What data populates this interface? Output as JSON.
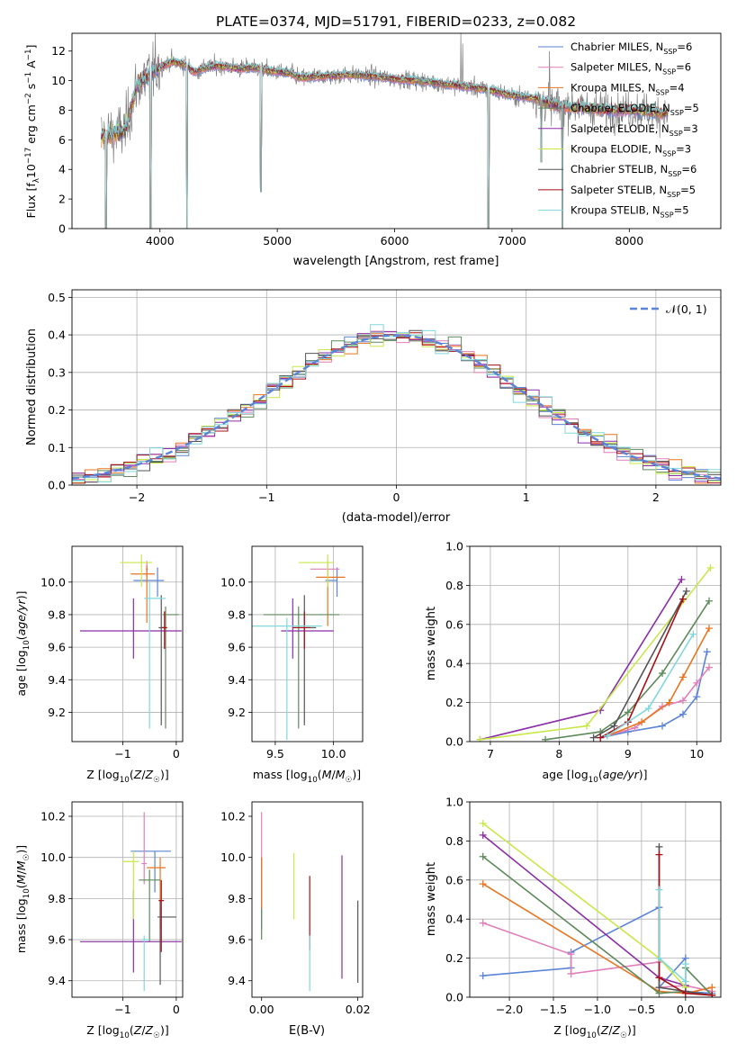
{
  "colors": {
    "series": [
      "#5b84d6",
      "#e17fb8",
      "#e8751f",
      "#5e8a5b",
      "#8c2ea8",
      "#c8e84a",
      "#555555",
      "#a80f16",
      "#80d8dc"
    ],
    "spectrum": "#808080",
    "grid": "#b0b0b0",
    "normal_curve": "#5b84d6"
  },
  "chart_data": [
    {
      "id": "spectrum",
      "type": "line",
      "title": "PLATE=0374, MJD=51791, FIBERID=0233, z=0.082",
      "xlabel": "wavelength [Angstrom, rest frame]",
      "ylabel": "Flux [fλ10⁻¹⁷ erg cm⁻² s⁻¹ A⁻¹]",
      "xlim": [
        3250,
        8780
      ],
      "ylim": [
        0,
        13.2
      ],
      "xticks": [
        4000,
        5000,
        6000,
        7000,
        8000
      ],
      "yticks": [
        0,
        2,
        4,
        6,
        8,
        10,
        12
      ],
      "legend_position": "top-right",
      "legend": [
        "Chabrier MILES, N_SSP=6",
        "Salpeter MILES, N_SSP=6",
        "Kroupa MILES, N_SSP=4",
        "Chabrier ELODIE, N_SSP=5",
        "Salpeter ELODIE, N_SSP=3",
        "Kroupa ELODIE, N_SSP=3",
        "Chabrier STELIB, N_SSP=6",
        "Salpeter STELIB, N_SSP=5",
        "Kroupa STELIB, N_SSP=5"
      ],
      "continuum": [
        [
          3500,
          6.2
        ],
        [
          3700,
          6.6
        ],
        [
          3800,
          9.6
        ],
        [
          3900,
          10.4
        ],
        [
          4000,
          10.9
        ],
        [
          4100,
          11.3
        ],
        [
          4200,
          11.1
        ],
        [
          4300,
          10.6
        ],
        [
          4400,
          10.9
        ],
        [
          4500,
          11.0
        ],
        [
          4600,
          10.9
        ],
        [
          4700,
          10.8
        ],
        [
          4800,
          10.9
        ],
        [
          4900,
          10.7
        ],
        [
          5000,
          10.6
        ],
        [
          5100,
          10.5
        ],
        [
          5200,
          10.2
        ],
        [
          5400,
          10.3
        ],
        [
          5600,
          10.4
        ],
        [
          5800,
          10.3
        ],
        [
          6000,
          10.1
        ],
        [
          6200,
          10.0
        ],
        [
          6400,
          9.8
        ],
        [
          6600,
          9.6
        ],
        [
          6800,
          9.4
        ],
        [
          7000,
          9.0
        ],
        [
          7200,
          8.8
        ],
        [
          7400,
          8.3
        ],
        [
          7600,
          8.2
        ],
        [
          7800,
          8.0
        ],
        [
          8000,
          8.0
        ],
        [
          8200,
          7.9
        ],
        [
          8300,
          7.8
        ]
      ],
      "absorption_dips": [
        [
          3540,
          0
        ],
        [
          3920,
          0
        ],
        [
          4230,
          0
        ],
        [
          4860,
          2.5
        ],
        [
          6800,
          0
        ],
        [
          7250,
          4.5
        ],
        [
          7430,
          0
        ]
      ],
      "emission_spikes": [
        [
          6565,
          13.2
        ],
        [
          6580,
          12.5
        ],
        [
          7320,
          12.0
        ]
      ]
    },
    {
      "id": "residuals",
      "type": "histogram",
      "xlabel": "(data-model)/error",
      "ylabel": "Normed distribution",
      "xlim": [
        -2.5,
        2.5
      ],
      "ylim": [
        0,
        0.52
      ],
      "xticks": [
        -2,
        -1,
        0,
        1,
        2
      ],
      "yticks": [
        0.0,
        0.1,
        0.2,
        0.3,
        0.4,
        0.5
      ],
      "bin_width": 0.1,
      "curve_label": "𝒩(0, 1)",
      "legend_position": "top-right",
      "grid": true
    },
    {
      "id": "z-vs-age",
      "type": "scatter",
      "xlabel": "Z [log₁₀(Z/Z☉)]",
      "ylabel": "age  [log₁₀(age/yr)]",
      "xlim": [
        -1.95,
        0.12
      ],
      "ylim": [
        9.02,
        10.22
      ],
      "xticks": [
        -1,
        0
      ],
      "yticks": [
        9.2,
        9.4,
        9.6,
        9.8,
        10.0
      ],
      "grid": true,
      "points": [
        {
          "x": -0.35,
          "xerr": [
            0.45,
            0.12
          ],
          "y": 10.01,
          "yerr": [
            0.1,
            0.08
          ]
        },
        {
          "x": -0.55,
          "xerr": [
            0.02,
            0.02
          ],
          "y": 10.08,
          "yerr": [
            0.05,
            0.05
          ]
        },
        {
          "x": -0.55,
          "xerr": [
            0.3,
            0.15
          ],
          "y": 10.05,
          "yerr": [
            0.3,
            0.05
          ]
        },
        {
          "x": -0.2,
          "xerr": [
            0.05,
            0.25
          ],
          "y": 9.8,
          "yerr": [
            0.7,
            0.05
          ]
        },
        {
          "x": -0.8,
          "xerr": [
            1.0,
            0.9
          ],
          "y": 9.7,
          "yerr": [
            0.17,
            0.2
          ]
        },
        {
          "x": -0.65,
          "xerr": [
            0.4,
            0.2
          ],
          "y": 10.12,
          "yerr": [
            0.15,
            0.05
          ]
        },
        {
          "x": -0.28,
          "xerr": [
            0.05,
            0.05
          ],
          "y": 9.72,
          "yerr": [
            0.6,
            0.2
          ]
        },
        {
          "x": -0.22,
          "xerr": [
            0.05,
            0.05
          ],
          "y": 9.72,
          "yerr": [
            0.13,
            0.1
          ]
        },
        {
          "x": -0.5,
          "xerr": [
            0.1,
            0.3
          ],
          "y": 9.9,
          "yerr": [
            0.8,
            0.1
          ]
        }
      ]
    },
    {
      "id": "mass-vs-age",
      "type": "scatter",
      "xlabel": "mass [log₁₀(M/M☉)]",
      "ylabel": "",
      "xlim": [
        9.3,
        10.25
      ],
      "ylim": [
        9.02,
        10.22
      ],
      "xticks": [
        9.5,
        10.0
      ],
      "yticks": [
        9.2,
        9.4,
        9.6,
        9.8,
        10.0
      ],
      "grid": true,
      "points": [
        {
          "x": 10.03,
          "xerr": [
            0.1,
            0.0
          ],
          "y": 10.01,
          "yerr": [
            0.1,
            0.08
          ]
        },
        {
          "x": 9.95,
          "xerr": [
            0.15,
            0.1
          ],
          "y": 10.08,
          "yerr": [
            0.05,
            0.05
          ]
        },
        {
          "x": 9.95,
          "xerr": [
            0.1,
            0.15
          ],
          "y": 10.03,
          "yerr": [
            0.3,
            0.05
          ]
        },
        {
          "x": 9.7,
          "xerr": [
            0.3,
            0.35
          ],
          "y": 9.8,
          "yerr": [
            0.7,
            0.05
          ]
        },
        {
          "x": 9.65,
          "xerr": [
            0.1,
            0.35
          ],
          "y": 9.7,
          "yerr": [
            0.17,
            0.2
          ]
        },
        {
          "x": 9.95,
          "xerr": [
            0.25,
            0.05
          ],
          "y": 10.12,
          "yerr": [
            0.15,
            0.05
          ]
        },
        {
          "x": 9.75,
          "xerr": [
            0.1,
            0.1
          ],
          "y": 9.72,
          "yerr": [
            0.6,
            0.2
          ]
        },
        {
          "x": 9.75,
          "xerr": [
            0.1,
            0.05
          ],
          "y": 9.72,
          "yerr": [
            0.13,
            0.1
          ]
        },
        {
          "x": 9.6,
          "xerr": [
            0.3,
            0.3
          ],
          "y": 9.73,
          "yerr": [
            0.7,
            0.05
          ]
        }
      ]
    },
    {
      "id": "age-vs-weight",
      "type": "line",
      "xlabel": "age  [log₁₀(age/yr)]",
      "ylabel": "mass weight",
      "xlim": [
        6.7,
        10.35
      ],
      "ylim": [
        0,
        1.0
      ],
      "xticks": [
        7,
        8,
        9,
        10
      ],
      "yticks": [
        0.0,
        0.2,
        0.4,
        0.6,
        0.8,
        1.0
      ],
      "grid": true,
      "series": [
        {
          "points": [
            [
              8.6,
              0.02
            ],
            [
              9.0,
              0.05
            ],
            [
              9.5,
              0.08
            ],
            [
              9.8,
              0.14
            ],
            [
              10.0,
              0.23
            ],
            [
              10.15,
              0.46
            ]
          ]
        },
        {
          "points": [
            [
              8.7,
              0.03
            ],
            [
              9.1,
              0.07
            ],
            [
              9.5,
              0.18
            ],
            [
              9.8,
              0.21
            ],
            [
              10.0,
              0.3
            ],
            [
              10.18,
              0.38
            ]
          ]
        },
        {
          "points": [
            [
              8.7,
              0.03
            ],
            [
              9.2,
              0.1
            ],
            [
              9.6,
              0.2
            ],
            [
              9.8,
              0.33
            ],
            [
              10.18,
              0.58
            ]
          ]
        },
        {
          "points": [
            [
              7.8,
              0.01
            ],
            [
              8.6,
              0.05
            ],
            [
              9.0,
              0.15
            ],
            [
              9.5,
              0.35
            ],
            [
              10.18,
              0.72
            ]
          ]
        },
        {
          "points": [
            [
              6.85,
              0.01
            ],
            [
              8.6,
              0.16
            ],
            [
              9.78,
              0.83
            ]
          ]
        },
        {
          "points": [
            [
              6.85,
              0.01
            ],
            [
              8.4,
              0.08
            ],
            [
              10.2,
              0.89
            ]
          ]
        },
        {
          "points": [
            [
              8.5,
              0.02
            ],
            [
              8.8,
              0.08
            ],
            [
              9.85,
              0.77
            ]
          ]
        },
        {
          "points": [
            [
              8.6,
              0.02
            ],
            [
              9.0,
              0.1
            ],
            [
              9.8,
              0.73
            ]
          ]
        },
        {
          "points": [
            [
              8.7,
              0.03
            ],
            [
              9.3,
              0.17
            ],
            [
              9.95,
              0.55
            ]
          ]
        }
      ]
    },
    {
      "id": "z-vs-mass",
      "type": "scatter",
      "xlabel": "Z [log₁₀(Z/Z☉)]",
      "ylabel": "mass [log₁₀(M/M☉)]",
      "xlim": [
        -1.95,
        0.12
      ],
      "ylim": [
        9.32,
        10.27
      ],
      "xticks": [
        -1,
        0
      ],
      "yticks": [
        9.4,
        9.6,
        9.8,
        10.0,
        10.2
      ],
      "grid": true,
      "points": [
        {
          "x": -0.4,
          "xerr": [
            0.45,
            0.3
          ],
          "y": 10.03,
          "yerr": [
            0.2,
            0.0
          ]
        },
        {
          "x": -0.6,
          "xerr": [
            0.05,
            0.05
          ],
          "y": 9.97,
          "yerr": [
            0.1,
            0.25
          ]
        },
        {
          "x": -0.3,
          "xerr": [
            0.25,
            0.1
          ],
          "y": 9.95,
          "yerr": [
            0.3,
            0.05
          ]
        },
        {
          "x": -0.5,
          "xerr": [
            0.2,
            0.2
          ],
          "y": 9.89,
          "yerr": [
            0.3,
            0.05
          ]
        },
        {
          "x": -0.8,
          "xerr": [
            1.0,
            0.9
          ],
          "y": 9.59,
          "yerr": [
            0.15,
            0.25
          ]
        },
        {
          "x": -0.8,
          "xerr": [
            0.2,
            0.1
          ],
          "y": 9.98,
          "yerr": [
            0.28,
            0.05
          ]
        },
        {
          "x": -0.3,
          "xerr": [
            0.05,
            0.3
          ],
          "y": 9.71,
          "yerr": [
            0.33,
            0.08
          ]
        },
        {
          "x": -0.28,
          "xerr": [
            0.05,
            0.05
          ],
          "y": 9.79,
          "yerr": [
            0.25,
            0.1
          ]
        },
        {
          "x": -0.6,
          "xerr": [
            0.05,
            0.1
          ],
          "y": 9.6,
          "yerr": [
            0.25,
            0.02
          ]
        }
      ]
    },
    {
      "id": "ebv-vs-mass",
      "type": "scatter",
      "xlabel": "E(B-V)",
      "ylabel": "",
      "xlim": [
        -0.002,
        0.021
      ],
      "ylim": [
        9.32,
        10.27
      ],
      "xticks": [
        0.0,
        0.02
      ],
      "yticks": [
        9.4,
        9.6,
        9.8,
        10.0,
        10.2
      ],
      "grid": false,
      "points": [
        {
          "x": 0.0,
          "y": 9.9,
          "yerr": [
            0.25,
            0.1
          ]
        },
        {
          "x": 0.0,
          "y": 10.05,
          "yerr": [
            0.1,
            0.17
          ]
        },
        {
          "x": 0.0,
          "y": 9.95,
          "yerr": [
            0.2,
            0.05
          ]
        },
        {
          "x": 0.0,
          "y": 9.7,
          "yerr": [
            0.1,
            0.05
          ]
        },
        {
          "x": 0.0167,
          "y": 9.71,
          "yerr": [
            0.3,
            0.3
          ]
        },
        {
          "x": 0.0067,
          "y": 9.86,
          "yerr": [
            0.16,
            0.16
          ]
        },
        {
          "x": 0.02,
          "y": 9.59,
          "yerr": [
            0.2,
            0.2
          ]
        },
        {
          "x": 0.01,
          "y": 9.79,
          "yerr": [
            0.24,
            0.12
          ]
        },
        {
          "x": 0.01,
          "y": 9.53,
          "yerr": [
            0.18,
            0.09
          ]
        }
      ]
    },
    {
      "id": "z-vs-weight",
      "type": "line",
      "xlabel": "Z [log₁₀(Z/Z☉)]",
      "ylabel": "mass weight",
      "xlim": [
        -2.45,
        0.4
      ],
      "ylim": [
        0,
        1.0
      ],
      "xticks": [
        -2.0,
        -1.5,
        -1.0,
        -0.5,
        0.0
      ],
      "yticks": [
        0.0,
        0.2,
        0.4,
        0.6,
        0.8,
        1.0
      ],
      "grid": true,
      "series": [
        {
          "points": [
            [
              -2.3,
              0.11
            ],
            [
              -1.3,
              0.15
            ],
            [
              -1.3,
              0.23
            ],
            [
              -0.3,
              0.46
            ],
            [
              -0.3,
              0.05
            ],
            [
              0.0,
              0.2
            ],
            [
              0.0,
              0.03
            ],
            [
              0.3,
              0.02
            ]
          ]
        },
        {
          "points": [
            [
              -2.3,
              0.38
            ],
            [
              -1.3,
              0.22
            ],
            [
              -1.3,
              0.12
            ],
            [
              -0.3,
              0.18
            ],
            [
              -0.3,
              0.05
            ],
            [
              0.0,
              0.06
            ],
            [
              0.3,
              0.03
            ]
          ]
        },
        {
          "points": [
            [
              -2.3,
              0.58
            ],
            [
              -0.3,
              0.03
            ],
            [
              0.0,
              0.02
            ],
            [
              0.3,
              0.05
            ]
          ]
        },
        {
          "points": [
            [
              -2.3,
              0.72
            ],
            [
              -0.3,
              0.02
            ],
            [
              0.0,
              0.03
            ],
            [
              0.0,
              0.15
            ],
            [
              0.3,
              0.01
            ]
          ]
        },
        {
          "points": [
            [
              -2.3,
              0.83
            ],
            [
              -0.3,
              0.1
            ],
            [
              0.0,
              0.06
            ]
          ]
        },
        {
          "points": [
            [
              -2.3,
              0.89
            ],
            [
              -0.3,
              0.2
            ],
            [
              0.0,
              0.05
            ]
          ]
        },
        {
          "points": [
            [
              -0.3,
              0.77
            ],
            [
              -0.3,
              0.05
            ],
            [
              0.0,
              0.03
            ],
            [
              0.3,
              0.01
            ]
          ]
        },
        {
          "points": [
            [
              -0.3,
              0.73
            ],
            [
              -0.3,
              0.1
            ],
            [
              0.0,
              0.02
            ],
            [
              0.3,
              0.01
            ]
          ]
        },
        {
          "points": [
            [
              -0.3,
              0.55
            ],
            [
              -0.3,
              0.2
            ],
            [
              0.0,
              0.08
            ],
            [
              0.0,
              0.17
            ]
          ]
        }
      ]
    }
  ]
}
